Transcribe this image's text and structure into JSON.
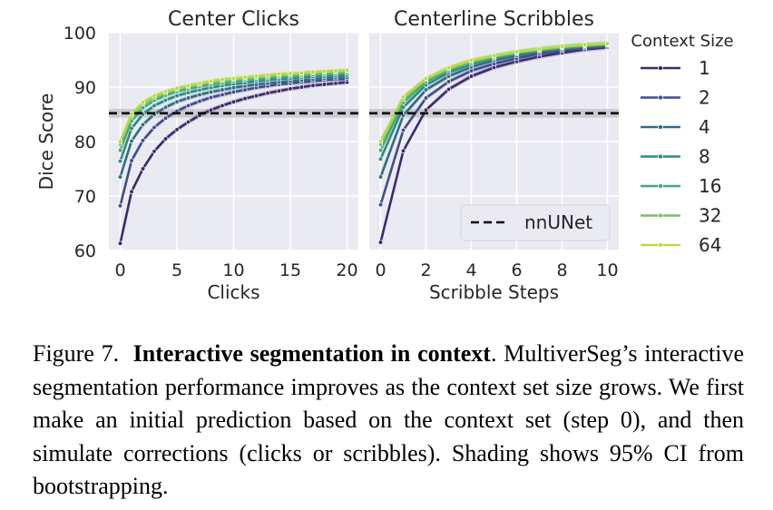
{
  "figure": {
    "legend_title": "Context Size",
    "reference_label": "nnUNet",
    "colors": {
      "1": "#3d2a6e",
      "2": "#3f4d8a",
      "4": "#336b86",
      "8": "#2d8a84",
      "16": "#41a97a",
      "32": "#78c25f",
      "64": "#b9d94d",
      "reference": "#000000",
      "panel_bg": "#eaeaf2",
      "grid": "#ffffff"
    }
  },
  "chart_data": [
    {
      "type": "line",
      "title": "Center Clicks",
      "xlabel": "Clicks",
      "ylabel": "Dice Score",
      "xlim": [
        -1,
        21
      ],
      "ylim": [
        60,
        100
      ],
      "xticks": [
        0,
        5,
        10,
        15,
        20
      ],
      "yticks": [
        60,
        70,
        80,
        90,
        100
      ],
      "grid": true,
      "reference_line": {
        "name": "nnUNet",
        "value": 85.2,
        "style": "dashed",
        "ci": [
          84.4,
          86.0
        ]
      },
      "x": [
        0,
        1,
        2,
        3,
        4,
        5,
        6,
        7,
        8,
        9,
        10,
        11,
        12,
        13,
        14,
        15,
        16,
        17,
        18,
        19,
        20
      ],
      "series": [
        {
          "name": "1",
          "values": [
            61.3,
            70.8,
            75.0,
            78.2,
            80.5,
            82.2,
            83.6,
            84.8,
            85.8,
            86.6,
            87.3,
            87.9,
            88.4,
            88.9,
            89.3,
            89.7,
            90.0,
            90.3,
            90.5,
            90.7,
            90.9
          ]
        },
        {
          "name": "2",
          "values": [
            68.2,
            76.5,
            80.2,
            82.6,
            84.3,
            85.6,
            86.6,
            87.4,
            88.1,
            88.6,
            89.1,
            89.5,
            89.9,
            90.2,
            90.5,
            90.7,
            90.9,
            91.1,
            91.3,
            91.4,
            91.5
          ]
        },
        {
          "name": "4",
          "values": [
            73.5,
            80.1,
            83.1,
            85.0,
            86.3,
            87.3,
            88.0,
            88.6,
            89.1,
            89.5,
            89.9,
            90.2,
            90.5,
            90.7,
            90.9,
            91.1,
            91.3,
            91.4,
            91.6,
            91.7,
            91.8
          ]
        },
        {
          "name": "8",
          "values": [
            76.4,
            82.4,
            85.0,
            86.6,
            87.6,
            88.4,
            89.0,
            89.5,
            89.9,
            90.3,
            90.6,
            90.8,
            91.1,
            91.3,
            91.5,
            91.6,
            91.8,
            91.9,
            92.0,
            92.1,
            92.2
          ]
        },
        {
          "name": "16",
          "values": [
            78.4,
            83.8,
            86.2,
            87.6,
            88.5,
            89.2,
            89.7,
            90.1,
            90.5,
            90.8,
            91.1,
            91.3,
            91.5,
            91.7,
            91.9,
            92.0,
            92.1,
            92.3,
            92.4,
            92.5,
            92.6
          ]
        },
        {
          "name": "32",
          "values": [
            79.5,
            84.7,
            86.9,
            88.1,
            89.0,
            89.6,
            90.1,
            90.5,
            90.9,
            91.2,
            91.4,
            91.6,
            91.8,
            92.0,
            92.2,
            92.3,
            92.4,
            92.6,
            92.7,
            92.8,
            92.9
          ]
        },
        {
          "name": "64",
          "values": [
            80.0,
            85.1,
            87.2,
            88.4,
            89.2,
            89.8,
            90.3,
            90.7,
            91.1,
            91.4,
            91.6,
            91.8,
            92.0,
            92.2,
            92.4,
            92.5,
            92.6,
            92.8,
            92.9,
            93.0,
            93.1
          ]
        }
      ]
    },
    {
      "type": "line",
      "title": "Centerline Scribbles",
      "xlabel": "Scribble Steps",
      "ylabel": "",
      "xlim": [
        -0.5,
        10.5
      ],
      "ylim": [
        60,
        100
      ],
      "xticks": [
        0,
        2,
        4,
        6,
        8,
        10
      ],
      "yticks": [
        60,
        70,
        80,
        90,
        100
      ],
      "grid": true,
      "reference_line": {
        "name": "nnUNet",
        "value": 85.2,
        "style": "dashed",
        "ci": [
          84.4,
          86.0
        ]
      },
      "x": [
        0,
        1,
        2,
        3,
        4,
        5,
        6,
        7,
        8,
        9,
        10
      ],
      "series": [
        {
          "name": "1",
          "values": [
            61.5,
            78.3,
            85.8,
            89.6,
            92.0,
            93.6,
            94.7,
            95.6,
            96.3,
            96.9,
            97.3
          ]
        },
        {
          "name": "2",
          "values": [
            68.4,
            82.1,
            88.0,
            91.0,
            93.0,
            94.3,
            95.3,
            96.1,
            96.7,
            97.2,
            97.5
          ]
        },
        {
          "name": "4",
          "values": [
            73.5,
            84.8,
            89.5,
            92.0,
            93.7,
            94.9,
            95.8,
            96.5,
            97.0,
            97.4,
            97.7
          ]
        },
        {
          "name": "8",
          "values": [
            76.8,
            86.3,
            90.4,
            92.7,
            94.2,
            95.3,
            96.1,
            96.7,
            97.2,
            97.6,
            97.8
          ]
        },
        {
          "name": "16",
          "values": [
            78.4,
            87.2,
            91.0,
            93.1,
            94.5,
            95.5,
            96.3,
            96.9,
            97.3,
            97.7,
            97.9
          ]
        },
        {
          "name": "32",
          "values": [
            79.5,
            87.8,
            91.4,
            93.4,
            94.8,
            95.7,
            96.4,
            97.0,
            97.4,
            97.7,
            98.0
          ]
        },
        {
          "name": "64",
          "values": [
            80.1,
            88.2,
            91.6,
            93.6,
            94.9,
            95.8,
            96.5,
            97.0,
            97.5,
            97.8,
            98.0
          ]
        }
      ]
    }
  ],
  "caption": {
    "label": "Figure 7.",
    "title": "Interactive segmentation in context",
    "text": ".  MultiverSeg’s interactive segmentation performance improves as the context set size grows. We first make an initial prediction based on the context set (step 0), and then simulate corrections (clicks or scribbles). Shading shows 95% CI from bootstrapping."
  }
}
